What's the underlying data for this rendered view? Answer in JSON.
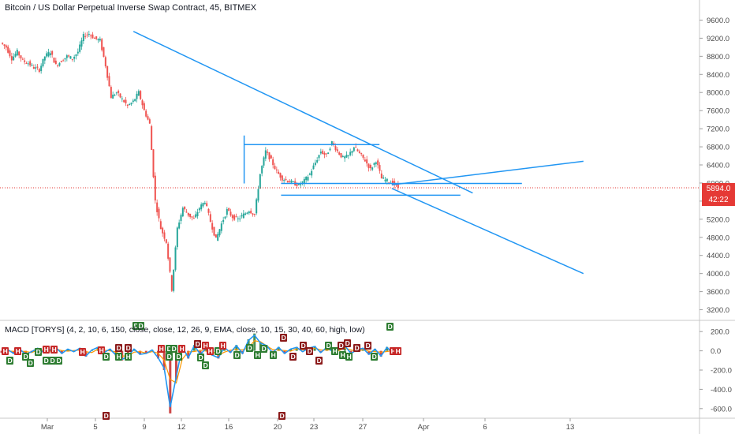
{
  "header": {
    "title": "Bitcoin / US Dollar Perpetual Inverse Swap Contract, 45, BITMEX"
  },
  "price_tags": {
    "last_price": "5894.0",
    "countdown": "42:22"
  },
  "indicator": {
    "label": "MACD [TORYS] (4, 2, 10, 6, 150, close, close, 12, 26, 9, EMA, close, 10, 15, 30, 40, 60, high, low)"
  },
  "colors": {
    "up": "#26a69a",
    "down": "#ef5350",
    "trendline": "#2196f3",
    "last_price_line": "#e53935",
    "macd_line": "#2196f3",
    "signal_line": "#ff9800",
    "histogram_up": "#2e7d32",
    "histogram_down": "#c62828",
    "label_h": "#c62828",
    "label_d_green": "#2e7d32",
    "label_d_red": "#8b1a1a"
  },
  "chart_data": [
    {
      "type": "line",
      "series": [
        {
          "values": [
            9100,
            9000,
            8750,
            8900,
            8700,
            8650,
            8550,
            8500,
            8800,
            8900,
            8600,
            8700,
            8800,
            8750,
            8900,
            9250,
            9300,
            9200,
            9150,
            8600,
            7900,
            8000,
            7850,
            7700,
            7800,
            8000,
            7600,
            7300,
            5600,
            5000,
            4700,
            3650,
            5000,
            5450,
            5300,
            5200,
            5450,
            5600,
            5150,
            4750,
            5100,
            5400,
            5250,
            5200,
            5300,
            5400,
            5300,
            6200,
            6700,
            6500,
            6250,
            6100,
            6050,
            6000,
            5950,
            6050,
            6200,
            6450,
            6700,
            6600,
            6900,
            6700,
            6550,
            6600,
            6800,
            6650,
            6500,
            6300,
            6500,
            6100,
            6050,
            6000,
            5894
          ]
        }
      ],
      "x_ticks": [
        "Mar",
        "5",
        "9",
        "12",
        "16",
        "20",
        "23",
        "27",
        "Apr",
        "6",
        "13"
      ],
      "y_ticks": [
        "9600.0",
        "9200.0",
        "8800.0",
        "8400.0",
        "8000.0",
        "7600.0",
        "7200.0",
        "6800.0",
        "6400.0",
        "6000.0",
        "5600.0",
        "5200.0",
        "4800.0",
        "4400.0",
        "4000.0",
        "3600.0",
        "3200.0"
      ],
      "ylim": [
        3000,
        9800
      ],
      "last_price": 5894,
      "trendlines": [
        {
          "from": [
            "Mar 8",
            9350
          ],
          "to": [
            "Apr 5",
            5780
          ]
        },
        {
          "from": [
            "Mar 29",
            5960
          ],
          "to": [
            "Apr 14",
            6480
          ]
        },
        {
          "from": [
            "Mar 29",
            5880
          ],
          "to": [
            "Apr 14",
            4000
          ]
        },
        {
          "from": [
            "Mar 20",
            5730
          ],
          "to": [
            "Apr 4",
            5730
          ]
        },
        {
          "from": [
            "Mar 20",
            5990
          ],
          "to": [
            "Apr 9",
            5990
          ]
        },
        {
          "from": [
            "Mar 17",
            7050
          ],
          "to": [
            "Mar 17",
            5990
          ]
        },
        {
          "from": [
            "Mar 17",
            6850
          ],
          "to": [
            "Mar 28",
            6850
          ]
        }
      ],
      "grid": false
    },
    {
      "type": "line",
      "title": "MACD [TORYS] (4, 2, 10, 6, 150, close, close, 12, 26, 9, EMA, close, 10, 15, 30, 40, 60, high, low)",
      "series": [
        {
          "values": [
            -20,
            15,
            -30,
            20,
            -40,
            -10,
            30,
            -20,
            10,
            40,
            -30,
            20,
            -10,
            30,
            -60,
            10,
            40,
            -20,
            20,
            -50,
            -100,
            -60,
            20,
            -40,
            -30,
            10,
            -80,
            -200,
            -650,
            -300,
            50,
            -80,
            60,
            -40,
            30,
            -50,
            -80,
            40,
            -20,
            60,
            -30,
            120,
            180,
            90,
            60,
            -20,
            40,
            -30,
            20,
            40,
            -10,
            30,
            50,
            -20,
            40,
            -10,
            20,
            60,
            -30,
            10,
            30,
            -40,
            20,
            -60,
            40,
            -30,
            0
          ]
        }
      ],
      "y_ticks": [
        "200.0",
        "0.0",
        "-200.0",
        "-400.0",
        "-600.0"
      ],
      "ylim": [
        -700,
        300
      ],
      "grid": false
    }
  ]
}
